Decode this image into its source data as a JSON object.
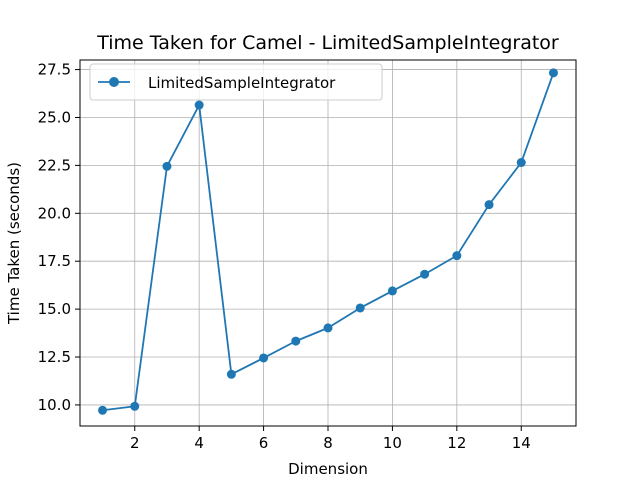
{
  "chart_data": {
    "type": "line",
    "title": "Time Taken for Camel - LimitedSampleIntegrator",
    "xlabel": "Dimension",
    "ylabel": "Time Taken (seconds)",
    "xlim": [
      0.3,
      15.7
    ],
    "ylim": [
      8.9,
      28.0
    ],
    "xticks": [
      2,
      4,
      6,
      8,
      10,
      12,
      14
    ],
    "yticks": [
      10.0,
      12.5,
      15.0,
      17.5,
      20.0,
      22.5,
      25.0,
      27.5
    ],
    "xtick_labels": [
      "2",
      "4",
      "6",
      "8",
      "10",
      "12",
      "14"
    ],
    "ytick_labels": [
      "10.0",
      "12.5",
      "15.0",
      "17.5",
      "20.0",
      "22.5",
      "25.0",
      "27.5"
    ],
    "grid": true,
    "legend_position": "upper-left",
    "series": [
      {
        "name": "LimitedSampleIntegrator",
        "color": "#1f77b4",
        "marker": "circle",
        "x": [
          1,
          2,
          3,
          4,
          5,
          6,
          7,
          8,
          9,
          10,
          11,
          12,
          13,
          14,
          15
        ],
        "y": [
          9.72,
          9.93,
          22.45,
          25.65,
          11.6,
          12.45,
          13.33,
          14.02,
          15.06,
          15.95,
          16.82,
          17.79,
          20.45,
          22.65,
          27.33
        ]
      }
    ]
  }
}
